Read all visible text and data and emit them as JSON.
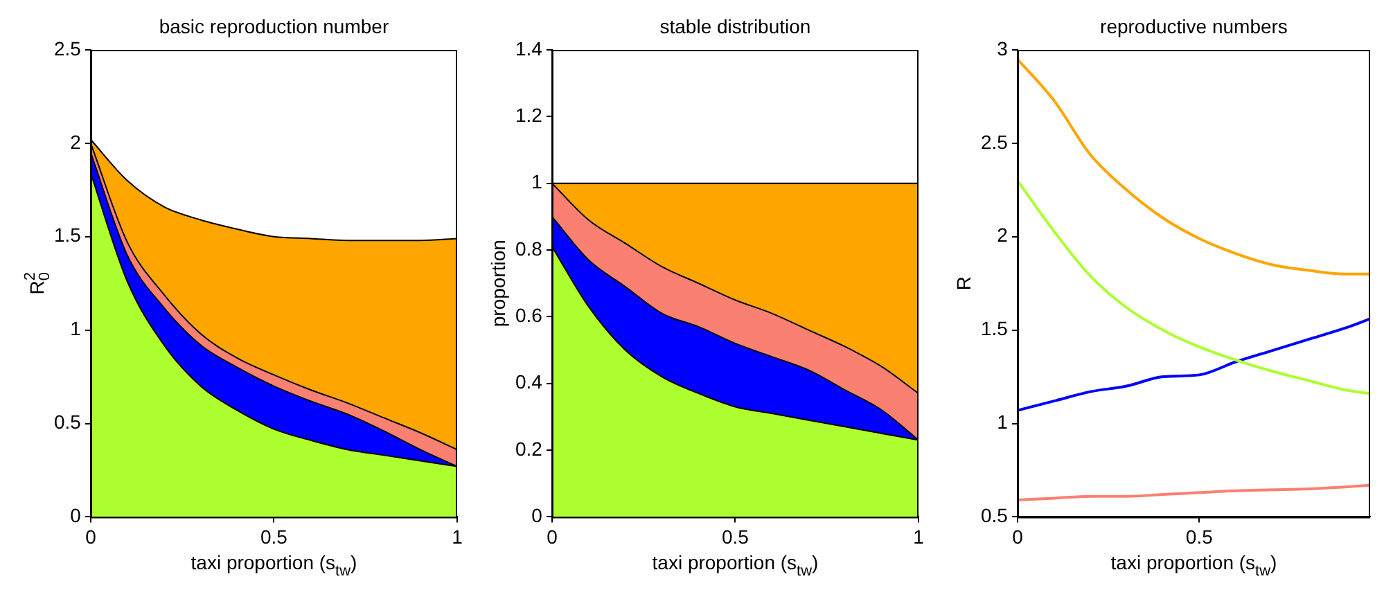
{
  "chart_data": [
    {
      "type": "area",
      "title": "basic reproduction number",
      "xlabel": "taxi proportion (s$_{tw}$)",
      "ylabel": "R$_{0}$$^{2}$",
      "stacked": true,
      "marker": "none",
      "x": [
        0,
        0.1,
        0.2,
        0.3,
        0.4,
        0.5,
        0.6,
        0.7,
        0.8,
        0.9,
        1
      ],
      "series": [
        {
          "color": "#adff2f",
          "values": [
            1.84,
            1.26,
            0.92,
            0.7,
            0.57,
            0.47,
            0.41,
            0.36,
            0.33,
            0.3,
            0.27
          ]
        },
        {
          "color": "#0000ff",
          "values": [
            0.11,
            0.14,
            0.2,
            0.22,
            0.23,
            0.23,
            0.21,
            0.19,
            0.13,
            0.06,
            0
          ]
        },
        {
          "color": "#fa8072",
          "values": [
            0.05,
            0.07,
            0.07,
            0.06,
            0.05,
            0.06,
            0.06,
            0.06,
            0.07,
            0.09,
            0.09
          ]
        },
        {
          "color": "#ffa500",
          "values": [
            0.02,
            0.33,
            0.47,
            0.61,
            0.69,
            0.74,
            0.81,
            0.87,
            0.95,
            1.03,
            1.13
          ]
        }
      ],
      "xlim": [
        0,
        1
      ],
      "xticks": [
        0,
        0.5,
        1
      ],
      "ylim": [
        0,
        2.5
      ],
      "yticks": [
        0,
        0.5,
        1,
        1.5,
        2,
        2.5
      ]
    },
    {
      "type": "area",
      "title": "stable distribution",
      "xlabel": "taxi proportion (s$_{tw}$)",
      "ylabel": "proportion",
      "stacked": true,
      "marker": "none",
      "x": [
        0,
        0.1,
        0.2,
        0.3,
        0.4,
        0.5,
        0.6,
        0.7,
        0.8,
        0.9,
        1
      ],
      "series": [
        {
          "color": "#adff2f",
          "values": [
            0.81,
            0.63,
            0.5,
            0.42,
            0.37,
            0.33,
            0.31,
            0.29,
            0.27,
            0.25,
            0.23
          ]
        },
        {
          "color": "#0000ff",
          "values": [
            0.09,
            0.14,
            0.19,
            0.19,
            0.2,
            0.19,
            0.17,
            0.15,
            0.11,
            0.07,
            0
          ]
        },
        {
          "color": "#fa8072",
          "values": [
            0.1,
            0.12,
            0.13,
            0.14,
            0.13,
            0.13,
            0.13,
            0.12,
            0.13,
            0.13,
            0.14
          ]
        },
        {
          "color": "#ffa500",
          "values": [
            0,
            0.11,
            0.18,
            0.25,
            0.3,
            0.35,
            0.39,
            0.44,
            0.49,
            0.55,
            0.63
          ]
        }
      ],
      "xlim": [
        0,
        1
      ],
      "xticks": [
        0,
        0.5,
        1
      ],
      "ylim": [
        0,
        1.4
      ],
      "yticks": [
        0,
        0.2,
        0.4,
        0.6,
        0.8,
        1,
        1.2,
        1.4
      ]
    },
    {
      "type": "line",
      "title": "reproductive numbers",
      "xlabel": "taxi proportion (s$_{tw}$)",
      "ylabel": "R",
      "marker": "none",
      "x": [
        0,
        0.1,
        0.2,
        0.3,
        0.4,
        0.5,
        0.6,
        0.7,
        0.8,
        0.9,
        0.97
      ],
      "series": [
        {
          "color": "#ffa500",
          "values": [
            2.95,
            2.73,
            2.44,
            2.25,
            2.1,
            1.99,
            1.91,
            1.85,
            1.82,
            1.8,
            1.8
          ]
        },
        {
          "color": "#adff2f",
          "values": [
            2.3,
            2.03,
            1.79,
            1.62,
            1.5,
            1.41,
            1.34,
            1.28,
            1.23,
            1.18,
            1.16
          ]
        },
        {
          "color": "#0000ff",
          "values": [
            1.07,
            1.12,
            1.17,
            1.2,
            1.25,
            1.26,
            1.33,
            1.39,
            1.45,
            1.51,
            1.56
          ]
        },
        {
          "color": "#fa8072",
          "values": [
            0.59,
            0.6,
            0.61,
            0.61,
            0.62,
            0.63,
            0.64,
            0.645,
            0.65,
            0.66,
            0.67
          ]
        }
      ],
      "xlim": [
        0,
        0.97
      ],
      "xticks": [
        0,
        0.5
      ],
      "ylim": [
        0.5,
        3
      ],
      "yticks": [
        0.5,
        1,
        1.5,
        2,
        2.5,
        3
      ]
    }
  ]
}
